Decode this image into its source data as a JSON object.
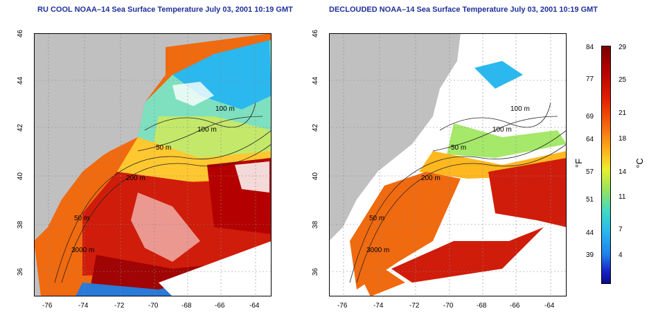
{
  "panels": [
    {
      "title": "RU COOL NOAA–14 Sea Surface Temperature July 03, 2001 10:19 GMT"
    },
    {
      "title": "DECLOUDED NOAA–14 Sea Surface Temperature July 03, 2001 10:19 GMT"
    }
  ],
  "axes": {
    "lat_ticks": [
      "46",
      "44",
      "42",
      "40",
      "38",
      "36"
    ],
    "lon_ticks": [
      "-76",
      "-74",
      "-72",
      "-70",
      "-68",
      "-66",
      "-64"
    ]
  },
  "contours": [
    "100 m",
    "100 m",
    "50 m",
    "200 m",
    "50 m",
    "3000 m"
  ],
  "colorbar": {
    "fahrenheit_ticks": [
      "84",
      "77",
      "69",
      "64",
      "57",
      "51",
      "44",
      "39"
    ],
    "celsius_ticks": [
      "29",
      "25",
      "21",
      "18",
      "14",
      "11",
      "7",
      "4"
    ],
    "fahrenheit_unit": "°F",
    "celsius_unit": "°C",
    "colors": [
      "#7a0000",
      "#b40000",
      "#e02000",
      "#f46a10",
      "#ffb820",
      "#e9ee30",
      "#9be45a",
      "#3fd8c8",
      "#2ab8ee",
      "#1f80e8",
      "#1622c8",
      "#0a0a8c"
    ]
  }
}
